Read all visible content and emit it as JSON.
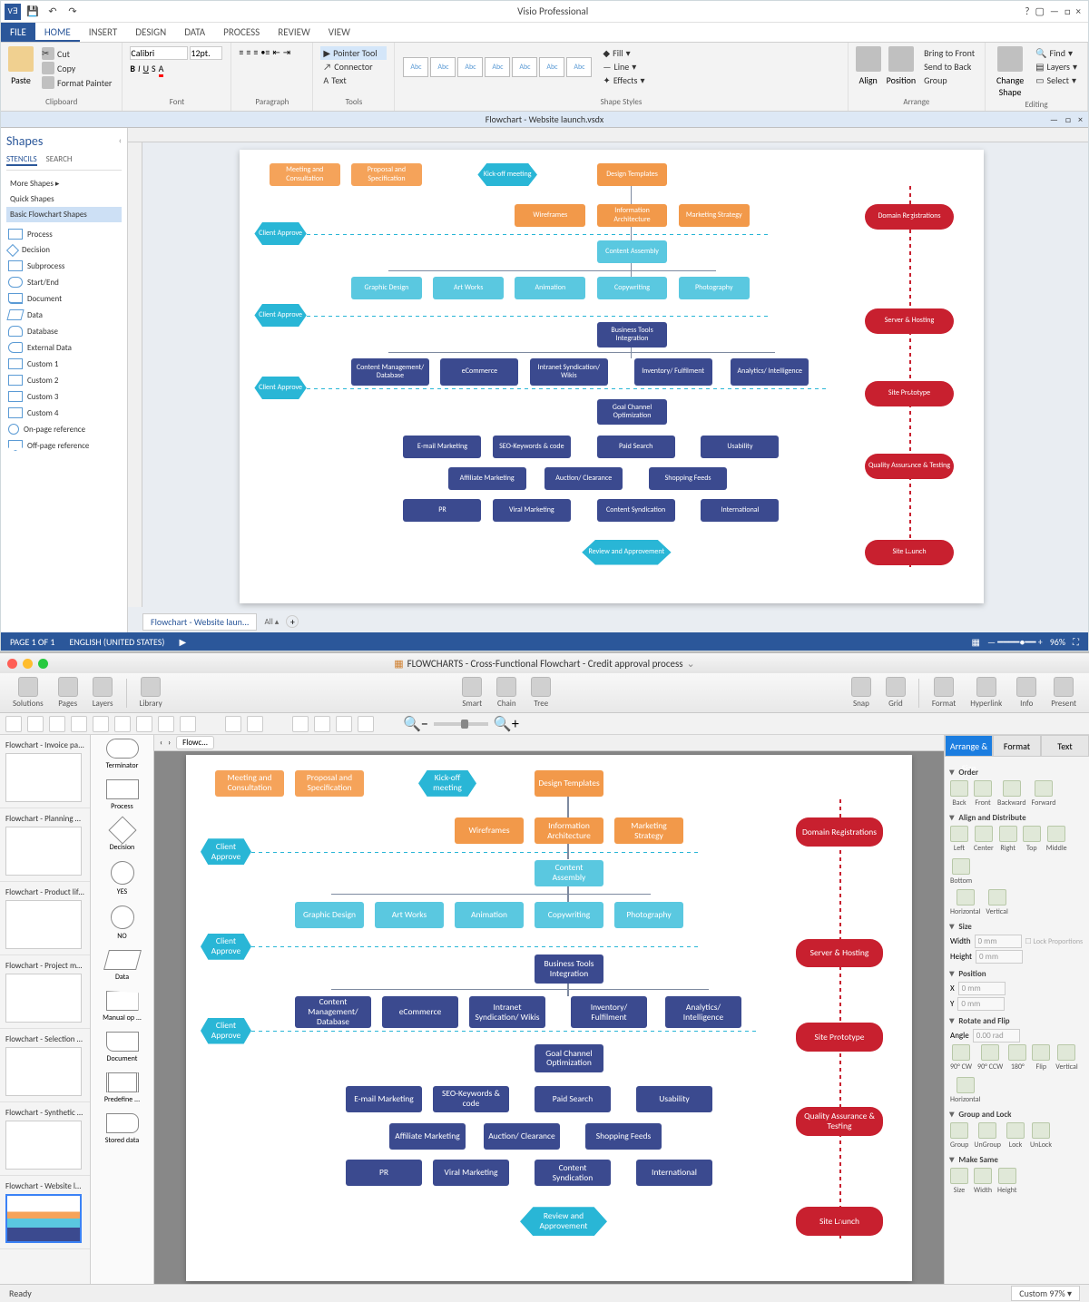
{
  "visio": {
    "app_title": "Visio Professional",
    "tabs": [
      "FILE",
      "HOME",
      "INSERT",
      "DESIGN",
      "DATA",
      "PROCESS",
      "REVIEW",
      "VIEW"
    ],
    "active_tab": "HOME",
    "ribbon": {
      "clipboard": {
        "label": "Clipboard",
        "paste": "Paste",
        "cut": "Cut",
        "copy": "Copy",
        "format_painter": "Format Painter"
      },
      "font": {
        "label": "Font",
        "family": "Calibri",
        "size": "12pt."
      },
      "paragraph": {
        "label": "Paragraph"
      },
      "tools": {
        "label": "Tools",
        "pointer": "Pointer Tool",
        "connector": "Connector",
        "text": "Text"
      },
      "shape_styles": {
        "label": "Shape Styles",
        "sample": "Abc",
        "fill": "Fill",
        "line": "Line",
        "effects": "Effects"
      },
      "arrange": {
        "label": "Arrange",
        "align": "Align",
        "position": "Position",
        "bring_front": "Bring to Front",
        "send_back": "Send to Back",
        "group": "Group"
      },
      "editing": {
        "label": "Editing",
        "change_shape": "Change Shape",
        "find": "Find",
        "layers": "Layers",
        "select": "Select"
      }
    },
    "doc_title": "Flowchart - Website launch.vsdx",
    "shapes_panel": {
      "title": "Shapes",
      "tabs": [
        "STENCILS",
        "SEARCH"
      ],
      "more": "More Shapes",
      "quick": "Quick Shapes",
      "basic": "Basic Flowchart Shapes",
      "items": [
        "Process",
        "Decision",
        "Subprocess",
        "Start/End",
        "Document",
        "Data",
        "Database",
        "External Data",
        "Custom 1",
        "Custom 2",
        "Custom 3",
        "Custom 4",
        "On-page reference",
        "Off-page reference"
      ]
    },
    "page_tab": "Flowchart - Website laun...",
    "status": {
      "page": "PAGE 1 OF 1",
      "lang": "ENGLISH (UNITED STATES)",
      "zoom": "96%"
    }
  },
  "cd": {
    "title": "FLOWCHARTS - Cross-Functional Flowchart - Credit approval process",
    "toolbar_left": [
      "Solutions",
      "Pages",
      "Layers",
      "Library"
    ],
    "toolbar_mid": [
      "Smart",
      "Chain",
      "Tree"
    ],
    "toolbar_right": [
      "Snap",
      "Grid",
      "Format",
      "Hyperlink",
      "Info",
      "Present"
    ],
    "crumb": "Flowc...",
    "thumbs": [
      "Flowchart - Invoice pa...",
      "Flowchart - Planning pr...",
      "Flowchart - Product life...",
      "Flowchart - Project man...",
      "Flowchart - Selection s...",
      "Flowchart - Synthetic o...",
      "Flowchart - Website la..."
    ],
    "stencil": [
      "Terminator",
      "Process",
      "Decision",
      "YES",
      "NO",
      "Data",
      "Manual op ...",
      "Document",
      "Predefine ...",
      "Stored data"
    ],
    "right_tabs": [
      "Arrange & Size",
      "Format",
      "Text"
    ],
    "panel": {
      "order": {
        "h": "Order",
        "items": [
          "Back",
          "Front",
          "Backward",
          "Forward"
        ]
      },
      "align": {
        "h": "Align and Distribute",
        "row1": [
          "Left",
          "Center",
          "Right",
          "Top",
          "Middle",
          "Bottom"
        ],
        "hlabel": "Horizontal",
        "vlabel": "Vertical"
      },
      "size": {
        "h": "Size",
        "w": "Width",
        "h2": "Height",
        "lock": "Lock Proportions",
        "val": "0 mm"
      },
      "position": {
        "h": "Position",
        "x": "X",
        "y": "Y",
        "val": "0 mm"
      },
      "rotate": {
        "h": "Rotate and Flip",
        "angle": "Angle",
        "val": "0.00 rad",
        "items": [
          "90° CW",
          "90° CCW",
          "180°",
          "Flip",
          "Vertical",
          "Horizontal"
        ]
      },
      "group": {
        "h": "Group and Lock",
        "items": [
          "Group",
          "UnGroup",
          "Lock",
          "UnLock"
        ]
      },
      "make": {
        "h": "Make Same",
        "items": [
          "Size",
          "Width",
          "Height"
        ]
      }
    },
    "status": {
      "ready": "Ready",
      "zoom": "Custom 97%"
    }
  },
  "flowchart": {
    "colors": {
      "orange": "#f5a35a",
      "cyan": "#29b6d6",
      "ltblue": "#5ac8e0",
      "navy": "#3b4a8f",
      "red": "#c8202f"
    },
    "row1": [
      {
        "t": "Meeting and Consultation",
        "c": "orange"
      },
      {
        "t": "Proposal and Specification",
        "c": "orange"
      },
      {
        "t": "Kick-off meeting",
        "c": "cyan",
        "hex": true
      },
      {
        "t": "Design Templates",
        "c": "orange2"
      }
    ],
    "row2": [
      {
        "t": "Wireframes",
        "c": "orange2"
      },
      {
        "t": "Information Architecture",
        "c": "orange2"
      },
      {
        "t": "Marketing Strategy",
        "c": "orange2"
      }
    ],
    "approve": "Client Approve",
    "row3": [
      {
        "t": "Content Assembly",
        "c": "ltblue"
      }
    ],
    "row4": [
      {
        "t": "Graphic Design",
        "c": "ltblue"
      },
      {
        "t": "Art Works",
        "c": "ltblue"
      },
      {
        "t": "Animation",
        "c": "ltblue"
      },
      {
        "t": "Copywriting",
        "c": "ltblue"
      },
      {
        "t": "Photography",
        "c": "ltblue"
      }
    ],
    "row5": [
      {
        "t": "Business Tools Integration",
        "c": "navy"
      }
    ],
    "row6": [
      {
        "t": "Content Management/ Database",
        "c": "navy"
      },
      {
        "t": "eCommerce",
        "c": "navy"
      },
      {
        "t": "Intranet Syndication/ Wikis",
        "c": "navy"
      },
      {
        "t": "Inventory/ Fulfilment",
        "c": "navy"
      },
      {
        "t": "Analytics/ Intelligence",
        "c": "navy"
      }
    ],
    "row7": [
      {
        "t": "Goal Channel Optimization",
        "c": "navy"
      }
    ],
    "row8": [
      {
        "t": "E-mail Marketing",
        "c": "navy"
      },
      {
        "t": "SEO-Keywords & code",
        "c": "navy"
      },
      {
        "t": "Paid Search",
        "c": "navy"
      },
      {
        "t": "Usability",
        "c": "navy"
      }
    ],
    "row9": [
      {
        "t": "Affiliate Marketing",
        "c": "navy"
      },
      {
        "t": "Auction/ Clearance",
        "c": "navy"
      },
      {
        "t": "Shopping Feeds",
        "c": "navy"
      }
    ],
    "row10": [
      {
        "t": "PR",
        "c": "navy"
      },
      {
        "t": "Viral Marketing",
        "c": "navy"
      },
      {
        "t": "Content Syndication",
        "c": "navy"
      },
      {
        "t": "International",
        "c": "navy"
      }
    ],
    "row11": [
      {
        "t": "Review and Approvement",
        "c": "cyan",
        "hex": true
      }
    ],
    "milestones": [
      "Domain Registrations",
      "Server & Hosting",
      "Site Prototype",
      "Quality Assurance & Testing",
      "Site Launch"
    ]
  }
}
